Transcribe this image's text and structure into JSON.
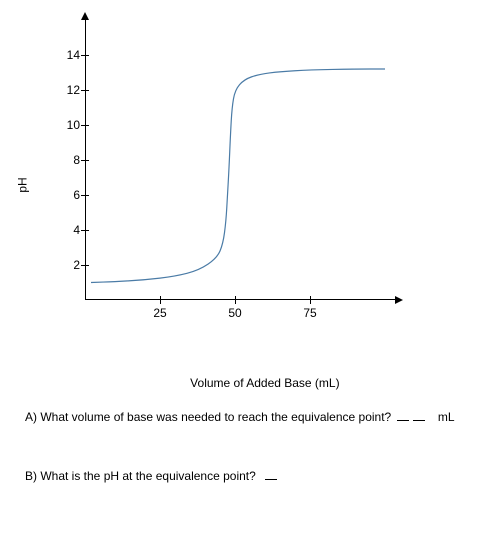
{
  "chart": {
    "type": "line",
    "y_axis_label": "pH",
    "x_axis_label": "Volume of Added Base (mL)",
    "y_ticks": [
      2,
      4,
      6,
      8,
      10,
      12,
      14
    ],
    "x_ticks": [
      25,
      50,
      75
    ],
    "xlim": [
      0,
      100
    ],
    "ylim": [
      0,
      16
    ],
    "curve_color": "#4a7ba6",
    "curve_width": 1.2,
    "axis_color": "#000000",
    "background_color": "#ffffff",
    "tick_fontsize": 12,
    "label_fontsize": 12,
    "curve_points": [
      [
        2,
        1.0
      ],
      [
        10,
        1.05
      ],
      [
        20,
        1.15
      ],
      [
        30,
        1.35
      ],
      [
        38,
        1.7
      ],
      [
        44,
        2.4
      ],
      [
        46,
        3.2
      ],
      [
        47,
        4.5
      ],
      [
        47.5,
        6.0
      ],
      [
        48,
        7.5
      ],
      [
        48.5,
        9.5
      ],
      [
        49,
        11.0
      ],
      [
        50,
        12.0
      ],
      [
        53,
        12.6
      ],
      [
        58,
        12.9
      ],
      [
        65,
        13.05
      ],
      [
        75,
        13.15
      ],
      [
        90,
        13.2
      ],
      [
        100,
        13.2
      ]
    ]
  },
  "questions": {
    "a": "A) What volume of base was needed to reach the equivalence point?",
    "a_unit": "mL",
    "b": "B) What is the pH at the equivalence point?"
  }
}
